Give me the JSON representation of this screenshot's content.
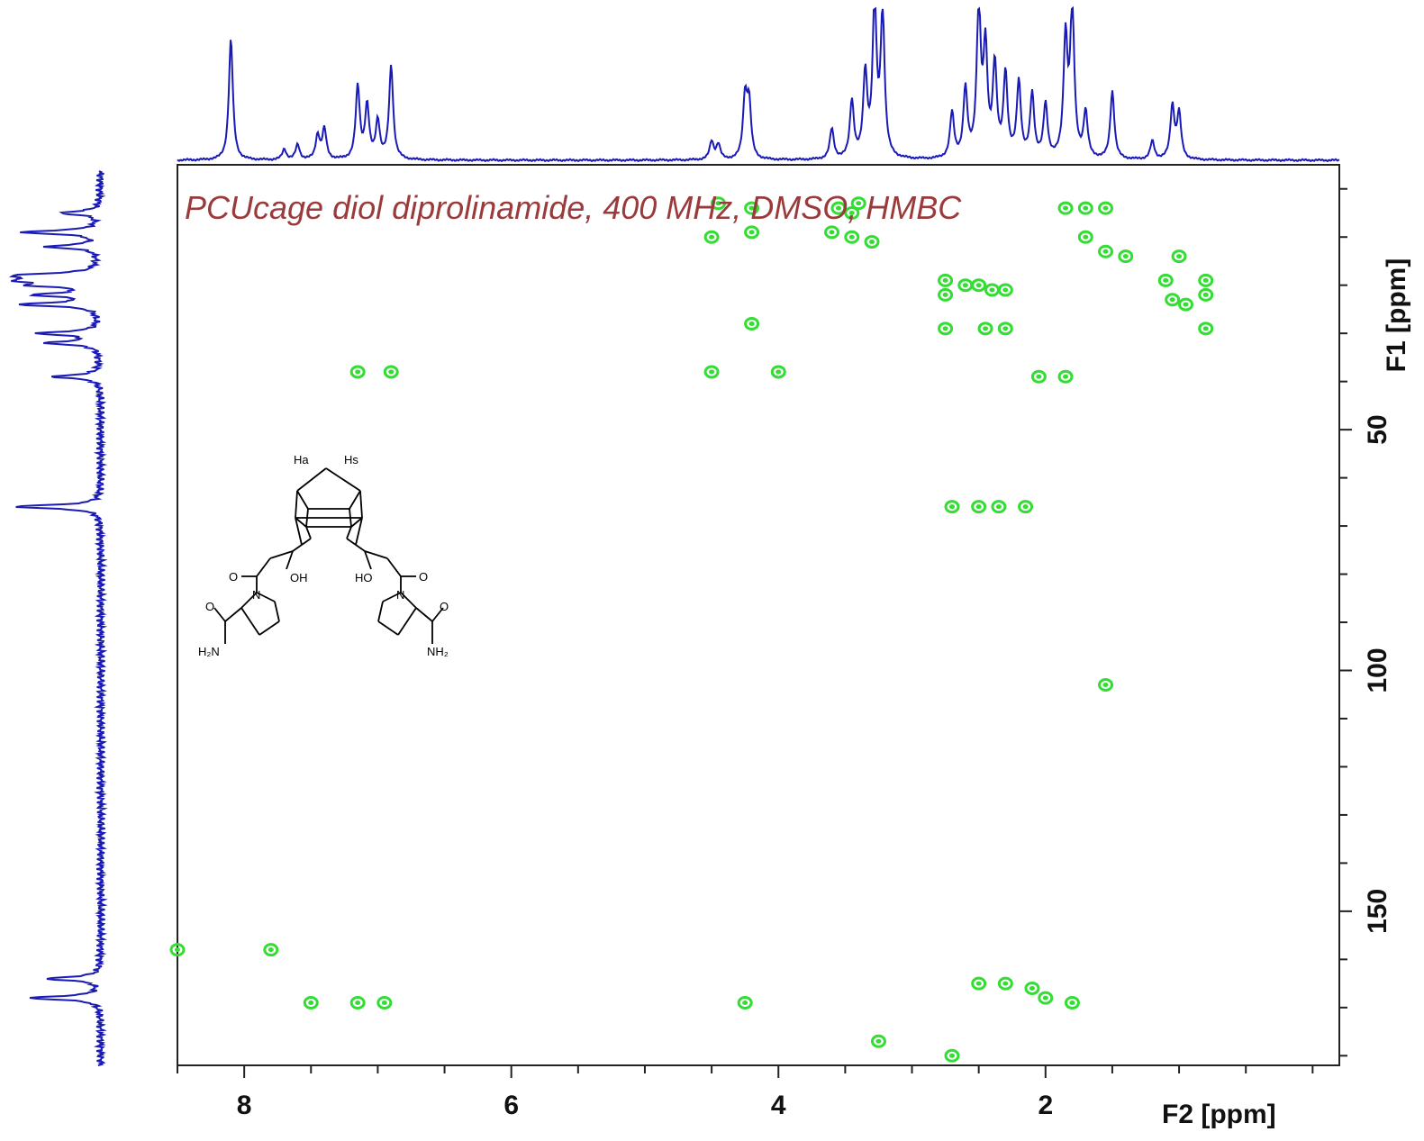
{
  "chart_data": {
    "type": "heatmap",
    "annotation": "PCUcage diol diprolinamide, 400 MHz, DMSO, HMBC",
    "xlabel": "F2 [ppm]",
    "ylabel": "F1 [ppm]",
    "xlim": [
      8.5,
      -0.2
    ],
    "ylim": [
      -5,
      182
    ],
    "x_ticks_major": [
      8,
      6,
      4,
      2
    ],
    "x_ticks_minor": [
      8.5,
      7.5,
      7,
      6.5,
      5.5,
      5,
      4.5,
      3.5,
      3,
      2.5,
      1.5,
      1,
      0.5,
      0
    ],
    "y_ticks_major": [
      50,
      100,
      150
    ],
    "y_ticks_minor": [
      0,
      10,
      20,
      30,
      40,
      60,
      70,
      80,
      90,
      110,
      120,
      130,
      140,
      160,
      170,
      180
    ],
    "colors": {
      "cross_peaks": "#33dd33",
      "projection": "#1a1ab4",
      "annotation": "#9b3a3a",
      "axes": "#222222"
    },
    "cross_peaks": [
      {
        "x": 4.45,
        "y": 3
      },
      {
        "x": 4.2,
        "y": 4
      },
      {
        "x": 3.55,
        "y": 4
      },
      {
        "x": 3.45,
        "y": 5
      },
      {
        "x": 3.4,
        "y": 3
      },
      {
        "x": 1.85,
        "y": 4
      },
      {
        "x": 1.7,
        "y": 4
      },
      {
        "x": 1.55,
        "y": 4
      },
      {
        "x": 4.5,
        "y": 10
      },
      {
        "x": 4.2,
        "y": 9
      },
      {
        "x": 3.6,
        "y": 9
      },
      {
        "x": 3.45,
        "y": 10
      },
      {
        "x": 3.3,
        "y": 11
      },
      {
        "x": 1.7,
        "y": 10
      },
      {
        "x": 1.55,
        "y": 13
      },
      {
        "x": 1.4,
        "y": 14
      },
      {
        "x": 1.0,
        "y": 14
      },
      {
        "x": 2.75,
        "y": 19
      },
      {
        "x": 2.6,
        "y": 20
      },
      {
        "x": 2.5,
        "y": 20
      },
      {
        "x": 2.4,
        "y": 21
      },
      {
        "x": 2.3,
        "y": 21
      },
      {
        "x": 2.75,
        "y": 22
      },
      {
        "x": 1.1,
        "y": 19
      },
      {
        "x": 0.8,
        "y": 19
      },
      {
        "x": 1.05,
        "y": 23
      },
      {
        "x": 0.8,
        "y": 22
      },
      {
        "x": 0.95,
        "y": 24
      },
      {
        "x": 4.2,
        "y": 28
      },
      {
        "x": 2.75,
        "y": 29
      },
      {
        "x": 2.45,
        "y": 29
      },
      {
        "x": 2.3,
        "y": 29
      },
      {
        "x": 0.8,
        "y": 29
      },
      {
        "x": 7.15,
        "y": 38
      },
      {
        "x": 6.9,
        "y": 38
      },
      {
        "x": 4.5,
        "y": 38
      },
      {
        "x": 4.0,
        "y": 38
      },
      {
        "x": 2.05,
        "y": 39
      },
      {
        "x": 1.85,
        "y": 39
      },
      {
        "x": 2.7,
        "y": 66
      },
      {
        "x": 2.5,
        "y": 66
      },
      {
        "x": 2.35,
        "y": 66
      },
      {
        "x": 2.15,
        "y": 66
      },
      {
        "x": 1.55,
        "y": 103
      },
      {
        "x": 8.5,
        "y": 158
      },
      {
        "x": 7.8,
        "y": 158
      },
      {
        "x": 7.5,
        "y": 169
      },
      {
        "x": 7.15,
        "y": 169
      },
      {
        "x": 6.95,
        "y": 169
      },
      {
        "x": 4.25,
        "y": 169
      },
      {
        "x": 2.5,
        "y": 165
      },
      {
        "x": 2.3,
        "y": 165
      },
      {
        "x": 2.1,
        "y": 166
      },
      {
        "x": 2.0,
        "y": 168
      },
      {
        "x": 1.8,
        "y": 169
      },
      {
        "x": 3.25,
        "y": 177
      },
      {
        "x": 2.7,
        "y": 180
      }
    ],
    "f2_projection_peaks": [
      {
        "x": 8.1,
        "h": 0.8
      },
      {
        "x": 7.7,
        "h": 0.07
      },
      {
        "x": 7.6,
        "h": 0.1
      },
      {
        "x": 7.45,
        "h": 0.16
      },
      {
        "x": 7.4,
        "h": 0.2
      },
      {
        "x": 7.15,
        "h": 0.48
      },
      {
        "x": 7.08,
        "h": 0.35
      },
      {
        "x": 7.0,
        "h": 0.25
      },
      {
        "x": 6.9,
        "h": 0.62
      },
      {
        "x": 4.5,
        "h": 0.12
      },
      {
        "x": 4.45,
        "h": 0.1
      },
      {
        "x": 4.25,
        "h": 0.4
      },
      {
        "x": 4.22,
        "h": 0.36
      },
      {
        "x": 3.6,
        "h": 0.2
      },
      {
        "x": 3.45,
        "h": 0.38
      },
      {
        "x": 3.35,
        "h": 0.55
      },
      {
        "x": 3.28,
        "h": 1.0
      },
      {
        "x": 3.22,
        "h": 0.95
      },
      {
        "x": 2.7,
        "h": 0.3
      },
      {
        "x": 2.6,
        "h": 0.45
      },
      {
        "x": 2.5,
        "h": 1.0
      },
      {
        "x": 2.45,
        "h": 0.7
      },
      {
        "x": 2.38,
        "h": 0.6
      },
      {
        "x": 2.3,
        "h": 0.55
      },
      {
        "x": 2.2,
        "h": 0.5
      },
      {
        "x": 2.1,
        "h": 0.42
      },
      {
        "x": 2.0,
        "h": 0.35
      },
      {
        "x": 1.85,
        "h": 0.78
      },
      {
        "x": 1.8,
        "h": 1.0
      },
      {
        "x": 1.7,
        "h": 0.3
      },
      {
        "x": 1.5,
        "h": 0.45
      },
      {
        "x": 1.2,
        "h": 0.12
      },
      {
        "x": 1.05,
        "h": 0.35
      },
      {
        "x": 1.0,
        "h": 0.3
      }
    ],
    "f1_projection_peaks": [
      {
        "y": 5,
        "h": 0.45
      },
      {
        "y": 9,
        "h": 0.9
      },
      {
        "y": 12,
        "h": 0.6
      },
      {
        "y": 18,
        "h": 1.0
      },
      {
        "y": 19,
        "h": 0.9
      },
      {
        "y": 20,
        "h": 0.65
      },
      {
        "y": 22,
        "h": 0.7
      },
      {
        "y": 24,
        "h": 0.9
      },
      {
        "y": 30,
        "h": 0.7
      },
      {
        "y": 32,
        "h": 0.6
      },
      {
        "y": 39,
        "h": 0.55
      },
      {
        "y": 66,
        "h": 1.0
      },
      {
        "y": 164,
        "h": 0.62
      },
      {
        "y": 168,
        "h": 0.82
      }
    ],
    "structure_labels": [
      "Ha",
      "Hs",
      "OH",
      "HO",
      "O",
      "O",
      "N",
      "N",
      "O",
      "O",
      "H₂N",
      "NH₂"
    ]
  }
}
